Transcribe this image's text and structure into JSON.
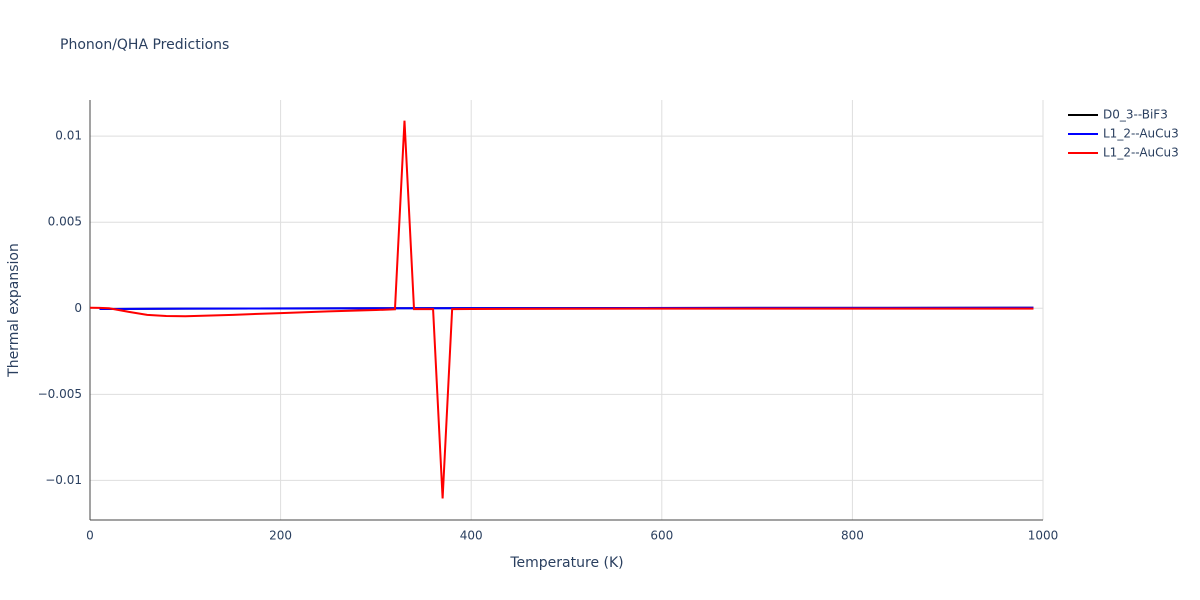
{
  "chart_data": {
    "type": "line",
    "title": "Phonon/QHA Predictions",
    "x_label": "Temperature (K)",
    "y_label": "Thermal expansion",
    "xlim": [
      0,
      1000
    ],
    "xticks": [
      0,
      200,
      400,
      600,
      800,
      1000
    ],
    "ylim": [
      -0.0123,
      0.0121
    ],
    "yticks": [
      {
        "value": -0.01,
        "label": "−0.01"
      },
      {
        "value": -0.005,
        "label": "−0.005"
      },
      0,
      0.005,
      0.01
    ],
    "grid": true,
    "legend": "top-right",
    "series": [
      {
        "name": "D0_3--BiF3",
        "color": "#000000",
        "x": [
          10,
          100,
          300,
          500,
          700,
          990
        ],
        "values": [
          -4e-05,
          -2e-05,
          0,
          1e-05,
          2e-05,
          3e-05
        ]
      },
      {
        "name": "L1_2--AuCu3",
        "color": "#0000ff",
        "x": [
          10,
          100,
          300,
          500,
          700,
          990
        ],
        "values": [
          -4e-05,
          -2e-05,
          0,
          1e-05,
          2e-05,
          3e-05
        ]
      },
      {
        "name": "L1_2--AuCu3",
        "color": "#ff0000",
        "x": [
          0,
          10,
          20,
          40,
          60,
          80,
          100,
          150,
          200,
          250,
          300,
          320,
          330,
          340,
          350,
          360,
          370,
          380,
          400,
          500,
          600,
          700,
          800,
          900,
          990
        ],
        "values": [
          3e-05,
          2e-05,
          0,
          -0.0002,
          -0.00038,
          -0.00045,
          -0.00046,
          -0.00038,
          -0.00028,
          -0.00018,
          -0.0001,
          -6e-05,
          0.0109,
          -5e-05,
          -5e-05,
          -5e-05,
          -0.01105,
          -5e-05,
          -4e-05,
          -3e-05,
          -2e-05,
          -2e-05,
          -2e-05,
          -2e-05,
          -2e-05
        ]
      }
    ]
  }
}
